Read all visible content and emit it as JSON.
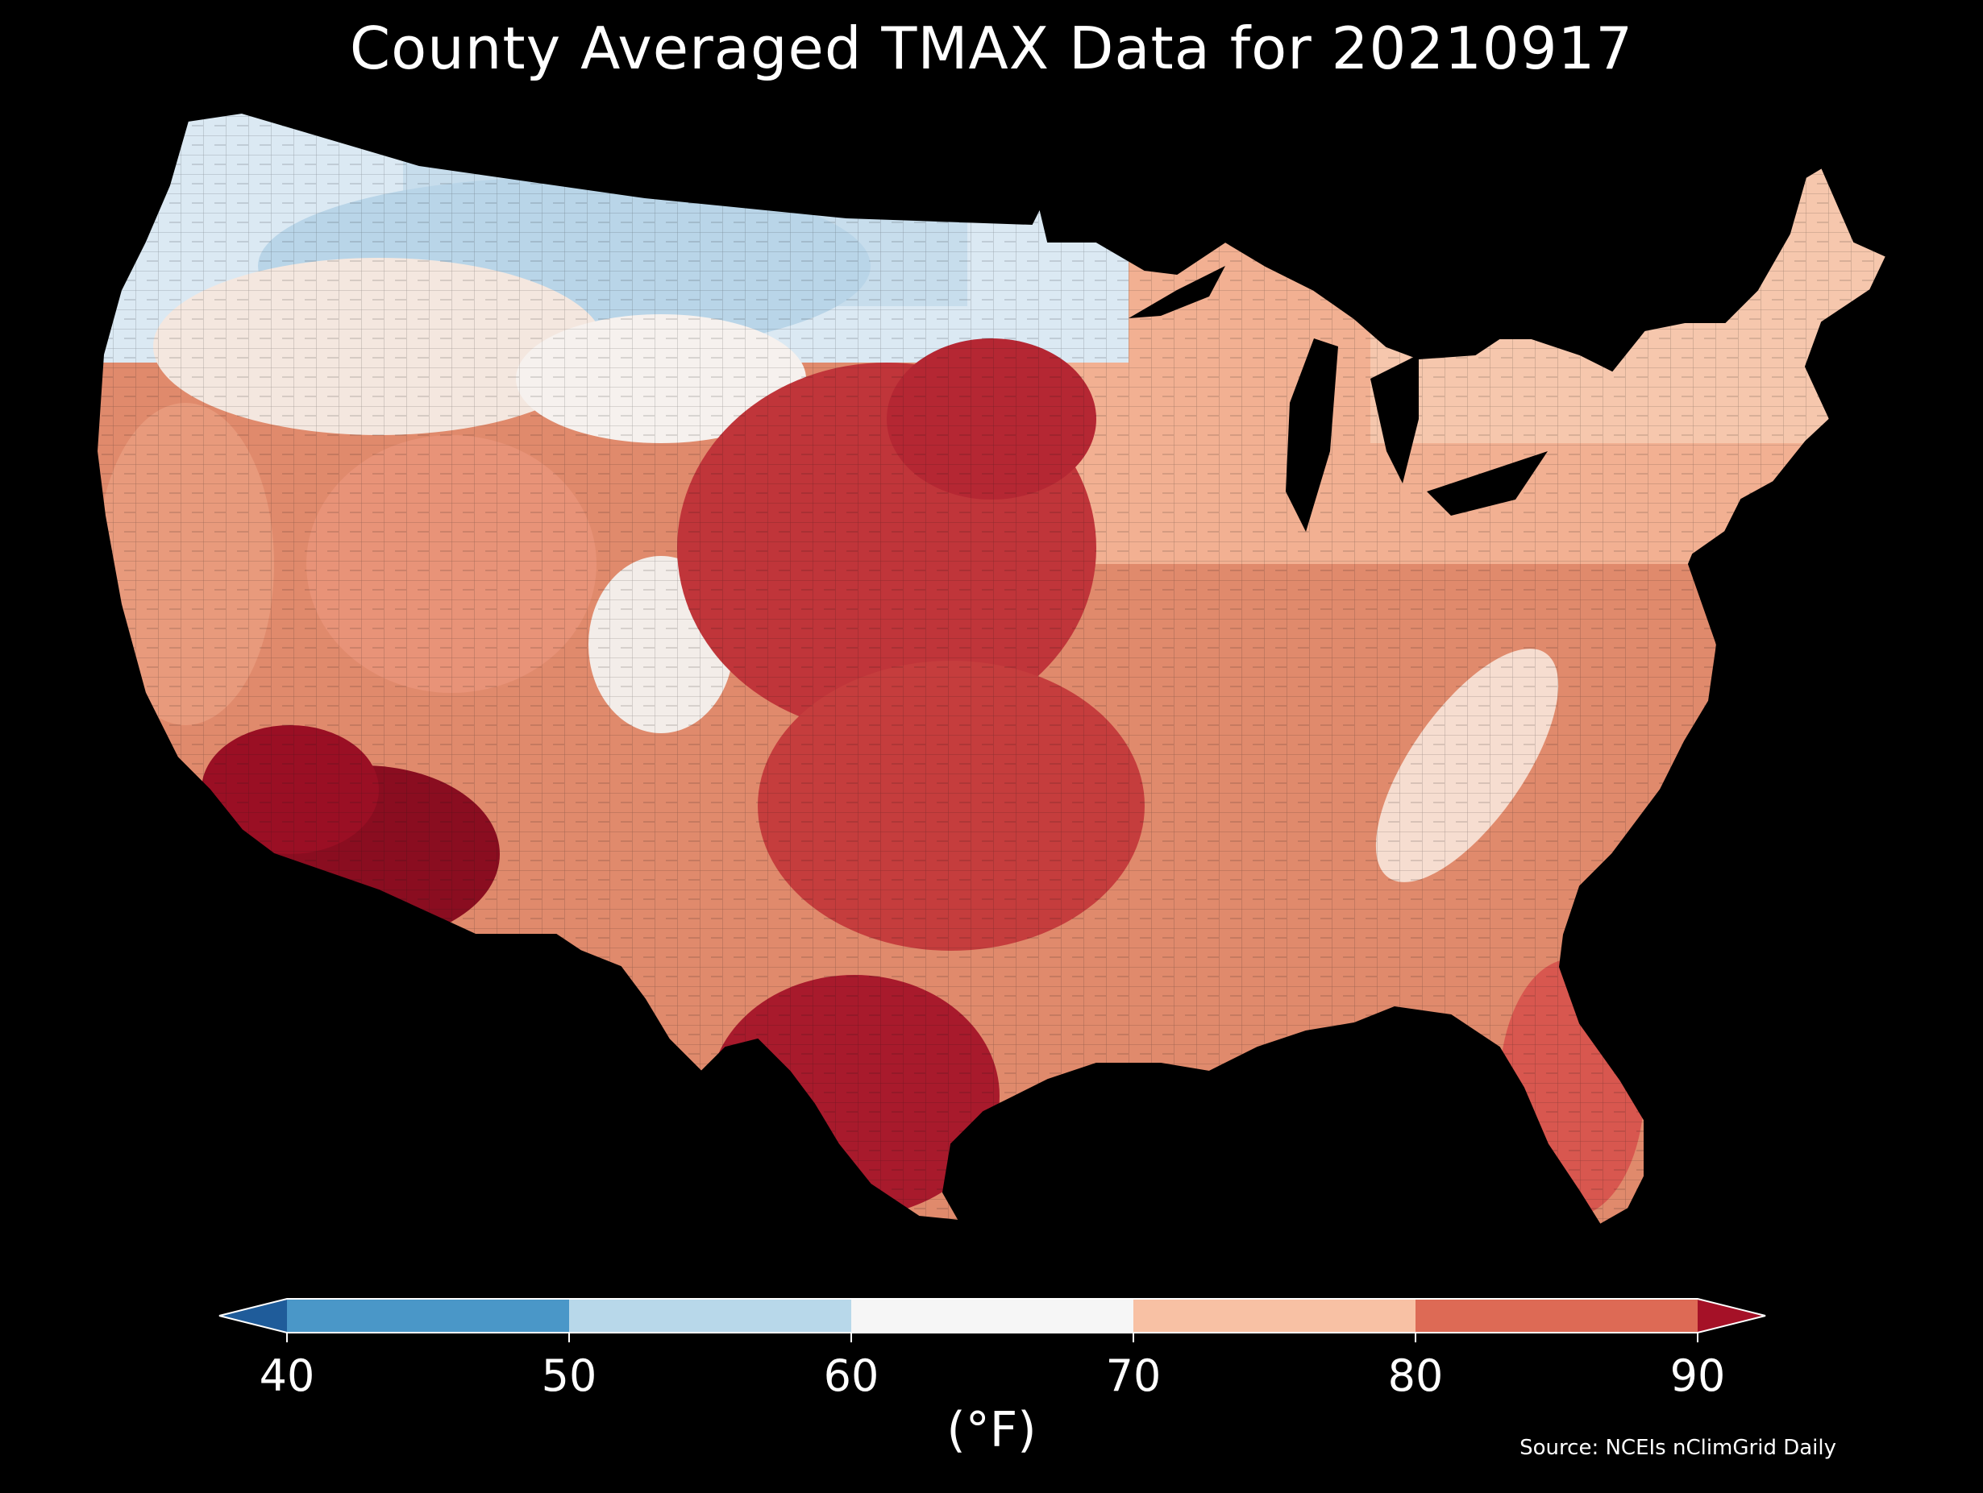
{
  "title": "County Averaged TMAX Data for 20210917",
  "source": "Source: NCEIs nClimGrid Daily",
  "colorbar": {
    "unit": "(°F)",
    "ticks": [
      "40",
      "50",
      "60",
      "70",
      "80",
      "90"
    ],
    "bins": [
      {
        "range": "<40",
        "color": "#1f5c9a"
      },
      {
        "range": "40-50",
        "color": "#4a97c8"
      },
      {
        "range": "50-60",
        "color": "#b8d8ea"
      },
      {
        "range": "60-70",
        "color": "#f6f6f6"
      },
      {
        "range": "70-80",
        "color": "#f8c1a4"
      },
      {
        "range": "80-90",
        "color": "#dd6a55"
      },
      {
        "range": ">90",
        "color": "#a51127"
      }
    ]
  },
  "map": {
    "region": "Contiguous United States",
    "variable": "TMAX",
    "date": "20210917",
    "aggregation": "county average"
  }
}
